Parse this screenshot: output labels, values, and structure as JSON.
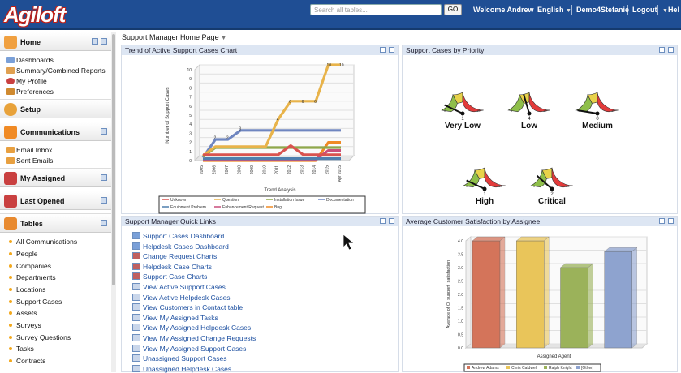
{
  "header": {
    "logo": "Agiloft",
    "search_placeholder": "Search all tables...",
    "go": "GO",
    "welcome": "Welcome Andrew",
    "language": "English",
    "kb": "Demo4Stefanie",
    "logout": "Logout",
    "help": "Hel"
  },
  "breadcrumb": "Support Manager Home Page",
  "sidebar": {
    "home": "Home",
    "home_items": [
      "Dashboards",
      "Summary/Combined Reports",
      "My Profile",
      "Preferences"
    ],
    "setup": "Setup",
    "communications": "Communications",
    "comm_items": [
      "Email Inbox",
      "Sent Emails"
    ],
    "my_assigned": "My Assigned",
    "last_opened": "Last Opened",
    "tables": "Tables",
    "table_items": [
      "All Communications",
      "People",
      "Companies",
      "Departments",
      "Locations",
      "Support Cases",
      "Assets",
      "Surveys",
      "Survey Questions",
      "Tasks",
      "Contracts"
    ]
  },
  "panels": {
    "trend": "Trend of Active Support Cases Chart",
    "priority": "Support Cases by Priority",
    "quicklinks": "Support Manager Quick Links",
    "satisfaction": "Average Customer Satisfaction by Assignee"
  },
  "quick_links": [
    "Support Cases Dashboard",
    "Helpdesk Cases Dashboard",
    "Change Request Charts",
    "Helpdesk Case Charts",
    "Support Case Charts",
    "View Active Support Cases",
    "View Active Helpdesk Cases",
    "View Customers in Contact table",
    "View My Assigned Tasks",
    "View My Assigned Helpdesk Cases",
    "View My Assigned Change Requests",
    "View My Assigned Support Cases",
    "Unassigned Support Cases",
    "Unassigned Helpdesk Cases"
  ],
  "colors": {
    "header": "#1f4e94",
    "link": "#1c4fa0",
    "panel_head": "#dde6f3"
  },
  "chart_data": [
    {
      "type": "line",
      "title": "",
      "xlabel": "Trend Analysis",
      "ylabel": "Number of Support Cases",
      "categories": [
        "2005",
        "2006",
        "2007",
        "2008",
        "2009",
        "2010",
        "2011",
        "2012",
        "2013",
        "2014",
        "2015",
        "Apr 2015"
      ],
      "ylim": [
        0,
        10
      ],
      "yticks": [
        "0",
        "1",
        "2",
        "3",
        "4",
        "5",
        "6",
        "7",
        "8",
        "9",
        "10"
      ],
      "series": [
        {
          "name": "Unknown",
          "color": "#d9534f",
          "values": [
            0,
            0,
            0,
            0,
            0,
            0,
            0,
            1,
            0,
            0,
            0,
            0
          ]
        },
        {
          "name": "Question",
          "color": "#e8b34a",
          "values": [
            0,
            1,
            1,
            1,
            1,
            1,
            4,
            6,
            6,
            6,
            10,
            10
          ]
        },
        {
          "name": "Installation Issue",
          "color": "#8fa84b",
          "values": [
            0,
            1,
            1,
            1,
            1,
            1,
            1,
            1,
            1,
            1,
            1,
            1
          ]
        },
        {
          "name": "Documentation",
          "color": "#6f86c0",
          "values": [
            0,
            2,
            2,
            3,
            3,
            3,
            3,
            3,
            3,
            3,
            3,
            3
          ]
        },
        {
          "name": "Equipment Problem",
          "color": "#4f7fae",
          "values": [
            0,
            0,
            0,
            0,
            0,
            0,
            0,
            0,
            0,
            0,
            0,
            0
          ]
        },
        {
          "name": "Enhancement Request",
          "color": "#c94e7a",
          "values": [
            0,
            0,
            0,
            0,
            0,
            0,
            0,
            0,
            0,
            0,
            1,
            1
          ]
        },
        {
          "name": "Bug",
          "color": "#f08a24",
          "values": [
            0,
            0,
            0,
            0,
            0,
            0,
            0,
            0,
            0,
            0,
            2,
            2
          ]
        }
      ],
      "labels": [
        {
          "i": 1,
          "v": "2"
        },
        {
          "i": 2,
          "v": "2"
        },
        {
          "i": 3,
          "v": "3"
        },
        {
          "i": 6,
          "v": "4"
        },
        {
          "i": 7,
          "v": "6"
        },
        {
          "i": 8,
          "v": "6"
        },
        {
          "i": 9,
          "v": "6"
        },
        {
          "i": 10,
          "v": "10"
        },
        {
          "i": 11,
          "v": "10"
        }
      ],
      "legend": "bottom"
    },
    {
      "type": "gauge",
      "items": [
        {
          "name": "Very Low",
          "value": 1
        },
        {
          "name": "Low",
          "value": 4
        },
        {
          "name": "Medium",
          "value": 0
        },
        {
          "name": "High",
          "value": 1
        },
        {
          "name": "Critical",
          "value": 2
        }
      ],
      "scale": [
        "0",
        "10"
      ]
    },
    {
      "type": "bar",
      "title": "",
      "xlabel": "Assigned Agent",
      "ylabel": "Average of Q_support_satisfaction",
      "categories": [
        "Andrew Adams",
        "Chris Caldwell",
        "Ralph Knight",
        "[Other]"
      ],
      "values": [
        4.0,
        4.0,
        3.0,
        3.6
      ],
      "colors": [
        "#d4745a",
        "#e9c55a",
        "#9bb25a",
        "#8ea3cf"
      ],
      "ylim": [
        0,
        4
      ],
      "yticks": [
        "0.0",
        "0.5",
        "1.0",
        "1.5",
        "2.0",
        "2.5",
        "3.0",
        "3.5",
        "4.0"
      ],
      "legend": "bottom"
    }
  ]
}
